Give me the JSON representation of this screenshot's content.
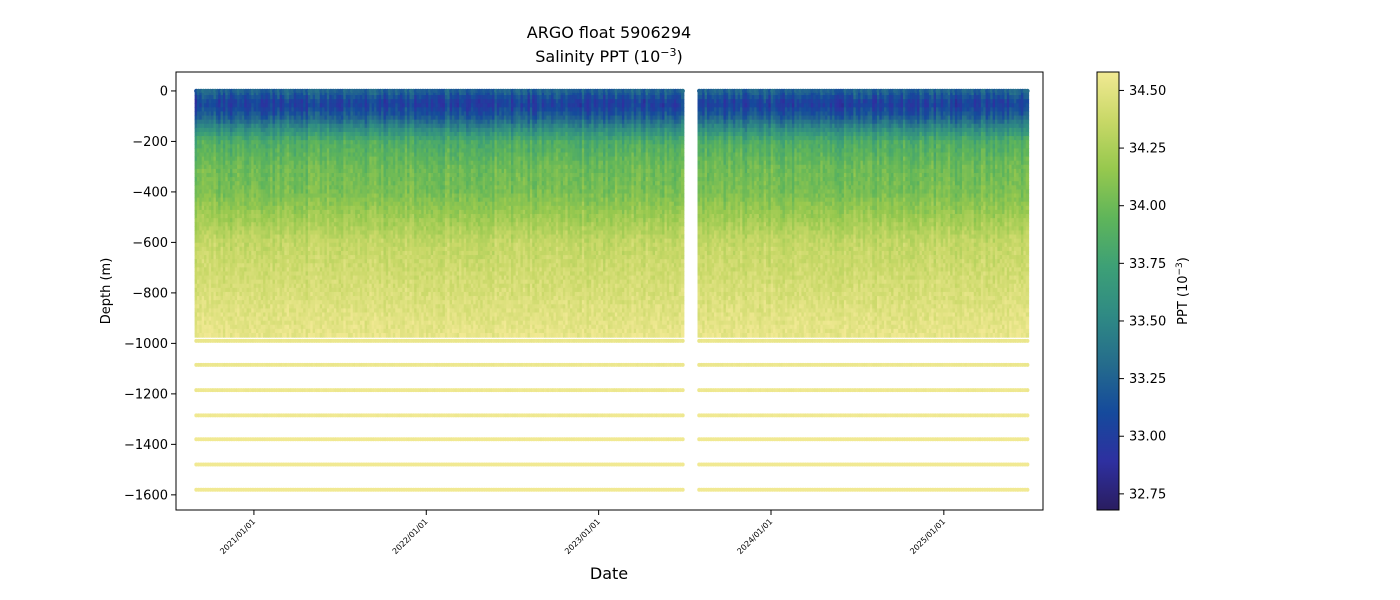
{
  "chart_data": {
    "type": "scatter",
    "title_line1": "ARGO float 5906294",
    "title_line2_main": "Salinity PPT (10",
    "title_line2_sup": "−3",
    "title_line2_end": ")",
    "xlabel": "Date",
    "ylabel": "Depth (m)",
    "xlim": [
      "2020-07-20",
      "2025-07-30"
    ],
    "ylim": [
      -1660,
      75
    ],
    "x_ticks": [
      "2021/01/01",
      "2022/01/01",
      "2023/01/01",
      "2024/01/01",
      "2025/01/01"
    ],
    "y_ticks": [
      0,
      -200,
      -400,
      -600,
      -800,
      -1000,
      -1200,
      -1400,
      -1600
    ],
    "date_range": [
      "2020-09-01",
      "2025-06-30"
    ],
    "data_gap": [
      "2023-07-01",
      "2023-08-01"
    ],
    "profile_interval_days": 5,
    "continuous_depth_range": [
      -975,
      0
    ],
    "deep_levels": [
      -990,
      -1085,
      -1185,
      -1285,
      -1380,
      -1480,
      -1580
    ],
    "salinity_profile_mean": [
      {
        "depth": 0,
        "ppt": 33.25
      },
      {
        "depth": -50,
        "ppt": 33.0
      },
      {
        "depth": -100,
        "ppt": 33.2
      },
      {
        "depth": -150,
        "ppt": 33.55
      },
      {
        "depth": -200,
        "ppt": 33.85
      },
      {
        "depth": -300,
        "ppt": 34.0
      },
      {
        "depth": -400,
        "ppt": 34.05
      },
      {
        "depth": -500,
        "ppt": 34.2
      },
      {
        "depth": -600,
        "ppt": 34.35
      },
      {
        "depth": -700,
        "ppt": 34.4
      },
      {
        "depth": -800,
        "ppt": 34.45
      },
      {
        "depth": -900,
        "ppt": 34.5
      },
      {
        "depth": -1000,
        "ppt": 34.55
      },
      {
        "depth": -1600,
        "ppt": 34.6
      }
    ],
    "colorbar": {
      "label_main": "PPT (10",
      "label_sup": "−3",
      "label_end": ")",
      "range": [
        32.68,
        34.58
      ],
      "ticks": [
        34.5,
        34.25,
        34.0,
        33.75,
        33.5,
        33.25,
        33.0,
        32.75
      ],
      "tick_labels": [
        "34.50",
        "34.25",
        "34.00",
        "33.75",
        "33.50",
        "33.25",
        "33.00",
        "32.75"
      ],
      "colormap": "haline",
      "colors": [
        "#2a1d60",
        "#2e30a0",
        "#154a9c",
        "#256c8c",
        "#2f8a84",
        "#3da076",
        "#5fb55a",
        "#96c84e",
        "#c8d867",
        "#f1e993"
      ]
    },
    "grid": false
  }
}
